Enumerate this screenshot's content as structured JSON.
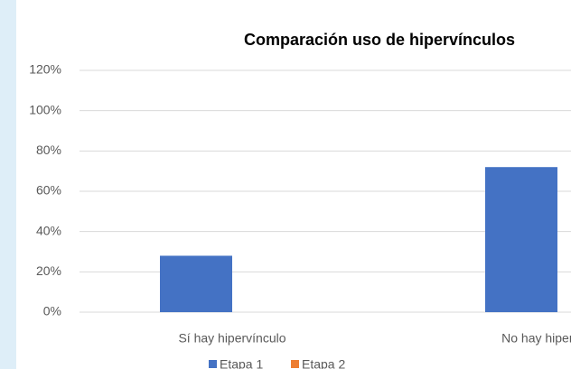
{
  "chart_data": {
    "type": "bar",
    "title": "Comparación uso de hipervínculos",
    "categories": [
      "Sí hay hipervínculo",
      "No hay hipervínculo"
    ],
    "series": [
      {
        "name": "Etapa 1",
        "color": "#4472c4",
        "values": [
          28,
          72
        ]
      },
      {
        "name": "Etapa 2",
        "color": "#ed7d31",
        "values": [
          null,
          null
        ]
      }
    ],
    "ylim": [
      0,
      120
    ],
    "yticks": [
      {
        "value": 0,
        "label": "0%"
      },
      {
        "value": 20,
        "label": "20%"
      },
      {
        "value": 40,
        "label": "40%"
      },
      {
        "value": 60,
        "label": "60%"
      },
      {
        "value": 80,
        "label": "80%"
      },
      {
        "value": 100,
        "label": "100%"
      },
      {
        "value": 120,
        "label": "120%"
      }
    ],
    "grid": true,
    "legend": "bottom"
  }
}
